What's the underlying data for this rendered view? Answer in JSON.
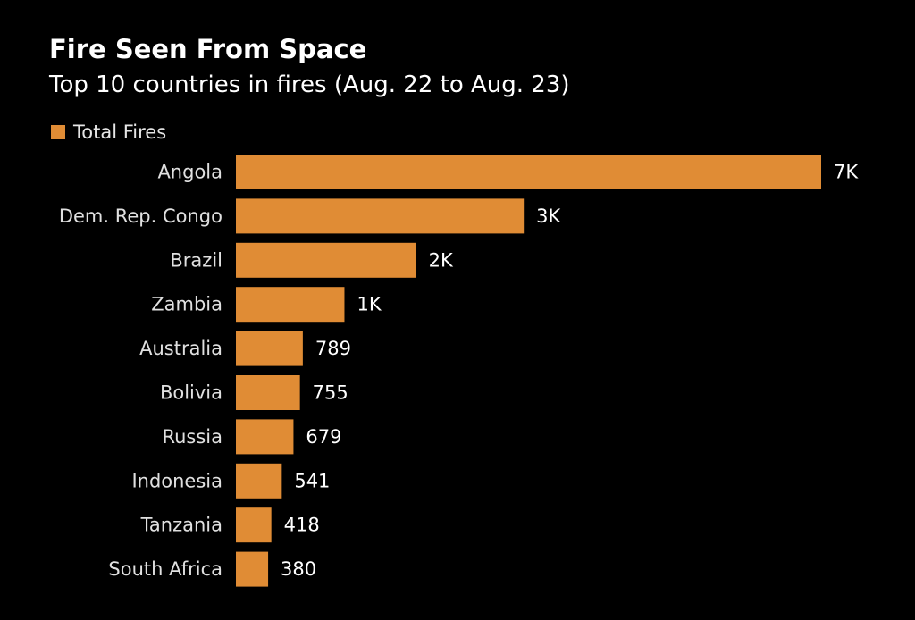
{
  "colors": {
    "background": "#000000",
    "bar": "#E08C35",
    "text": "#FFFFFF"
  },
  "chart_data": {
    "type": "bar",
    "orientation": "horizontal",
    "title": "Fire Seen From Space",
    "subtitle": "Top 10 countries in fires (Aug. 22 to Aug. 23)",
    "legend": {
      "placement": "top-left",
      "entries": [
        "Total Fires"
      ]
    },
    "categories": [
      "Angola",
      "Dem. Rep. Congo",
      "Brazil",
      "Zambia",
      "Australia",
      "Bolivia",
      "Russia",
      "Indonesia",
      "Tanzania",
      "South Africa"
    ],
    "series": [
      {
        "name": "Total Fires",
        "values": [
          6902,
          3395,
          2125,
          1280,
          789,
          755,
          679,
          541,
          418,
          380
        ],
        "data_labels": [
          "7K",
          "3K",
          "2K",
          "1K",
          "789",
          "755",
          "679",
          "541",
          "418",
          "380"
        ]
      }
    ],
    "xlim": [
      0,
      6902
    ],
    "grid": false,
    "xlabel": "",
    "ylabel": ""
  }
}
